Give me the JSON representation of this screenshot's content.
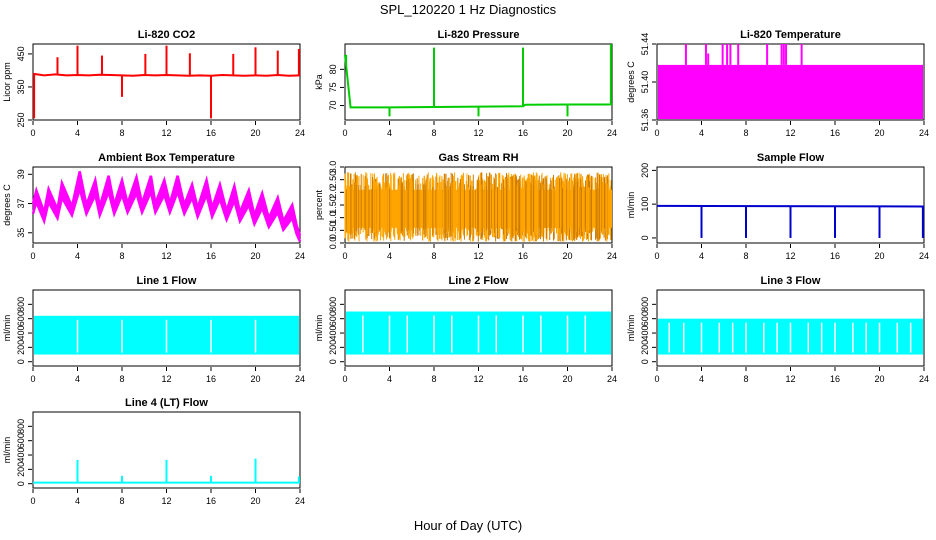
{
  "figure": {
    "title": "SPL_120220  1 Hz Diagnostics",
    "xlabel": "Hour of Day (UTC)"
  },
  "chart_data": [
    {
      "type": "line",
      "title": "Li-820 CO2",
      "ylabel": "Licor ppm",
      "xlim": [
        0,
        24
      ],
      "xticks": [
        0,
        4,
        8,
        12,
        16,
        20,
        24
      ],
      "ylim": [
        250,
        480
      ],
      "yticks": [
        250,
        350,
        450
      ],
      "color": "#ff0000",
      "series": [
        {
          "x": [
            0,
            1,
            2,
            3,
            4,
            5,
            6,
            7,
            8,
            9,
            10,
            11,
            12,
            13,
            14,
            15,
            16,
            17,
            18,
            19,
            20,
            21,
            22,
            23,
            24
          ],
          "y": [
            390,
            385,
            388,
            385,
            386,
            385,
            387,
            386,
            385,
            384,
            386,
            385,
            386,
            385,
            384,
            385,
            384,
            386,
            385,
            384,
            385,
            384,
            386,
            384,
            385
          ]
        }
      ],
      "spikes": [
        {
          "x": 0.1,
          "y": 255
        },
        {
          "x": 2.2,
          "y": 440
        },
        {
          "x": 4.0,
          "y": 475
        },
        {
          "x": 6.2,
          "y": 445
        },
        {
          "x": 8.0,
          "y": 320
        },
        {
          "x": 10.1,
          "y": 450
        },
        {
          "x": 12.0,
          "y": 475
        },
        {
          "x": 14.1,
          "y": 452
        },
        {
          "x": 16.0,
          "y": 255
        },
        {
          "x": 18.0,
          "y": 450
        },
        {
          "x": 20.0,
          "y": 470
        },
        {
          "x": 22.0,
          "y": 460
        },
        {
          "x": 23.9,
          "y": 465
        }
      ]
    },
    {
      "type": "line",
      "title": "Li-820 Pressure",
      "ylabel": "kPa",
      "xlim": [
        0,
        24
      ],
      "xticks": [
        0,
        4,
        8,
        12,
        16,
        20,
        24
      ],
      "ylim": [
        66,
        87
      ],
      "yticks": [
        70,
        75,
        80
      ],
      "color": "#00cc00",
      "series": [
        {
          "x": [
            0,
            0.5,
            4,
            8,
            8.2,
            12,
            16,
            16.2,
            20,
            23.8,
            24
          ],
          "y": [
            84,
            69.5,
            69.5,
            69.6,
            69.6,
            69.7,
            69.8,
            70.2,
            70.3,
            70.3,
            70.4
          ]
        }
      ],
      "spikes": [
        {
          "x": 0.1,
          "y": 84
        },
        {
          "x": 4.0,
          "y": 67
        },
        {
          "x": 8.0,
          "y": 86
        },
        {
          "x": 12.0,
          "y": 67
        },
        {
          "x": 16.0,
          "y": 86
        },
        {
          "x": 20.0,
          "y": 67
        },
        {
          "x": 23.9,
          "y": 87
        }
      ]
    },
    {
      "type": "area",
      "title": "Li-820 Temperature",
      "ylabel": "degrees C",
      "xlim": [
        0,
        24
      ],
      "xticks": [
        0,
        4,
        8,
        12,
        16,
        20,
        24
      ],
      "ylim": [
        51.36,
        51.44
      ],
      "yticks": [
        51.36,
        51.4,
        51.44
      ],
      "color": "#ff00ff",
      "band": [
        51.361,
        51.418
      ],
      "spikes": [
        {
          "x": 2.6,
          "y": 51.44
        },
        {
          "x": 4.4,
          "y": 51.44
        },
        {
          "x": 4.6,
          "y": 51.43
        },
        {
          "x": 5.9,
          "y": 51.44
        },
        {
          "x": 6.3,
          "y": 51.44
        },
        {
          "x": 6.6,
          "y": 51.44
        },
        {
          "x": 7.3,
          "y": 51.44
        },
        {
          "x": 9.9,
          "y": 51.44
        },
        {
          "x": 11.2,
          "y": 51.44
        },
        {
          "x": 11.4,
          "y": 51.44
        },
        {
          "x": 11.6,
          "y": 51.44
        },
        {
          "x": 13.0,
          "y": 51.44
        }
      ]
    },
    {
      "type": "line",
      "title": "Ambient Box Temperature",
      "ylabel": "degrees C",
      "xlim": [
        0,
        24
      ],
      "xticks": [
        0,
        4,
        8,
        12,
        16,
        20,
        24
      ],
      "ylim": [
        34.3,
        39.5
      ],
      "yticks": [
        35,
        37,
        39
      ],
      "color": "#ff00ff",
      "series": [
        {
          "name": "",
          "x": [
            0,
            0.3,
            1.0,
            1.4,
            2.2,
            2.6,
            3.5,
            4.2,
            4.8,
            5.6,
            6.0,
            6.8,
            7.3,
            8.0,
            8.5,
            9.3,
            9.8,
            10.6,
            11.0,
            11.8,
            12.3,
            13.0,
            13.6,
            14.3,
            14.8,
            15.6,
            16.1,
            16.8,
            17.4,
            18.1,
            18.6,
            19.4,
            19.9,
            20.6,
            21.2,
            22.0,
            22.5,
            23.3,
            23.7,
            24
          ],
          "y": [
            37.0,
            37.9,
            36.4,
            38.0,
            36.6,
            38.4,
            36.8,
            39.2,
            36.9,
            38.6,
            36.8,
            38.9,
            36.9,
            38.6,
            37.0,
            38.8,
            37.0,
            38.9,
            37.0,
            38.6,
            37.0,
            38.9,
            36.9,
            38.3,
            36.7,
            38.6,
            36.7,
            38.3,
            36.5,
            38.2,
            36.4,
            37.9,
            36.2,
            37.7,
            36.0,
            37.4,
            35.8,
            36.9,
            35.5,
            34.8
          ]
        },
        {
          "name": "",
          "x": [
            0,
            0.3,
            1.0,
            1.4,
            2.2,
            2.6,
            3.5,
            4.2,
            4.8,
            5.6,
            6.0,
            6.8,
            7.3,
            8.0,
            8.5,
            9.3,
            9.8,
            10.6,
            11.0,
            11.8,
            12.3,
            13.0,
            13.6,
            14.3,
            14.8,
            15.6,
            16.1,
            16.8,
            17.4,
            18.1,
            18.6,
            19.4,
            19.9,
            20.6,
            21.2,
            22.0,
            22.5,
            23.3,
            23.7,
            24
          ],
          "y": [
            36.3,
            37.1,
            35.8,
            37.1,
            36.0,
            37.4,
            36.2,
            38.0,
            36.3,
            37.6,
            36.2,
            37.8,
            36.3,
            37.6,
            36.4,
            37.7,
            36.4,
            37.8,
            36.4,
            37.6,
            36.4,
            37.8,
            36.3,
            37.4,
            36.1,
            37.6,
            36.1,
            37.3,
            35.9,
            37.2,
            35.8,
            36.9,
            35.6,
            36.7,
            35.4,
            36.4,
            35.2,
            36.0,
            34.9,
            34.4
          ]
        }
      ]
    },
    {
      "type": "scatter",
      "title": "Gas Stream RH",
      "ylabel": "percent",
      "xlim": [
        0,
        24
      ],
      "xticks": [
        0,
        4,
        8,
        12,
        16,
        20,
        24
      ],
      "ylim": [
        0,
        3.0
      ],
      "yticks": [
        0.0,
        0.5,
        1.0,
        1.5,
        2.0,
        2.5,
        3.0
      ],
      "color": "#ffa500",
      "band": [
        0.05,
        2.8
      ],
      "core": [
        0.6,
        2.1
      ]
    },
    {
      "type": "line",
      "title": "Sample Flow",
      "ylabel": "ml/min",
      "xlim": [
        0,
        24
      ],
      "xticks": [
        0,
        4,
        8,
        12,
        16,
        20,
        24
      ],
      "ylim": [
        -15,
        210
      ],
      "yticks": [
        0,
        100,
        200
      ],
      "color": "#0000cc",
      "series": [
        {
          "x": [
            0,
            24
          ],
          "y": [
            95,
            93
          ]
        }
      ],
      "spikes": [
        {
          "x": 4.0,
          "y": 0
        },
        {
          "x": 8.0,
          "y": 0
        },
        {
          "x": 12.0,
          "y": 0
        },
        {
          "x": 16.0,
          "y": 0
        },
        {
          "x": 20.0,
          "y": 0
        },
        {
          "x": 23.9,
          "y": 0
        }
      ]
    },
    {
      "type": "area",
      "title": "Line 1 Flow",
      "ylabel": "ml/min",
      "xlim": [
        0,
        24
      ],
      "xticks": [
        0,
        4,
        8,
        12,
        16,
        20,
        24
      ],
      "ylim": [
        -60,
        1000
      ],
      "yticks": [
        0,
        200,
        400,
        600,
        800
      ],
      "color": "#00ffff",
      "band": [
        100,
        640
      ],
      "gaps": [
        4.0,
        8.0,
        12.0,
        16.0,
        20.0
      ]
    },
    {
      "type": "area",
      "title": "Line 2 Flow",
      "ylabel": "ml/min",
      "xlim": [
        0,
        24
      ],
      "xticks": [
        0,
        4,
        8,
        12,
        16,
        20,
        24
      ],
      "ylim": [
        -60,
        1000
      ],
      "yticks": [
        0,
        200,
        400,
        600,
        800
      ],
      "color": "#00ffff",
      "band": [
        100,
        700
      ],
      "gaps": [
        1.6,
        4.0,
        5.6,
        8.0,
        9.6,
        12.0,
        13.6,
        16.0,
        17.6,
        20.0,
        21.6
      ]
    },
    {
      "type": "area",
      "title": "Line 3 Flow",
      "ylabel": "ml/min",
      "xlim": [
        0,
        24
      ],
      "xticks": [
        0,
        4,
        8,
        12,
        16,
        20,
        24
      ],
      "ylim": [
        -60,
        1000
      ],
      "yticks": [
        0,
        200,
        400,
        600,
        800
      ],
      "color": "#00ffff",
      "band": [
        100,
        600
      ],
      "gaps": [
        1.1,
        2.4,
        4.0,
        5.6,
        6.8,
        8.0,
        9.6,
        10.8,
        12.0,
        13.6,
        14.8,
        16.0,
        17.6,
        18.8,
        20.0,
        21.6,
        22.8
      ]
    },
    {
      "type": "line",
      "title": "Line 4 (LT) Flow",
      "ylabel": "ml/min",
      "xlim": [
        0,
        24
      ],
      "xticks": [
        0,
        4,
        8,
        12,
        16,
        20,
        24
      ],
      "ylim": [
        -60,
        1000
      ],
      "yticks": [
        0,
        200,
        400,
        600,
        800
      ],
      "color": "#00ffff",
      "series": [
        {
          "x": [
            0,
            24
          ],
          "y": [
            15,
            15
          ]
        }
      ],
      "spikes": [
        {
          "x": 4.0,
          "y": 330
        },
        {
          "x": 8.0,
          "y": 110
        },
        {
          "x": 12.0,
          "y": 330
        },
        {
          "x": 16.0,
          "y": 110
        },
        {
          "x": 20.0,
          "y": 350
        },
        {
          "x": 23.9,
          "y": 100
        }
      ]
    }
  ]
}
